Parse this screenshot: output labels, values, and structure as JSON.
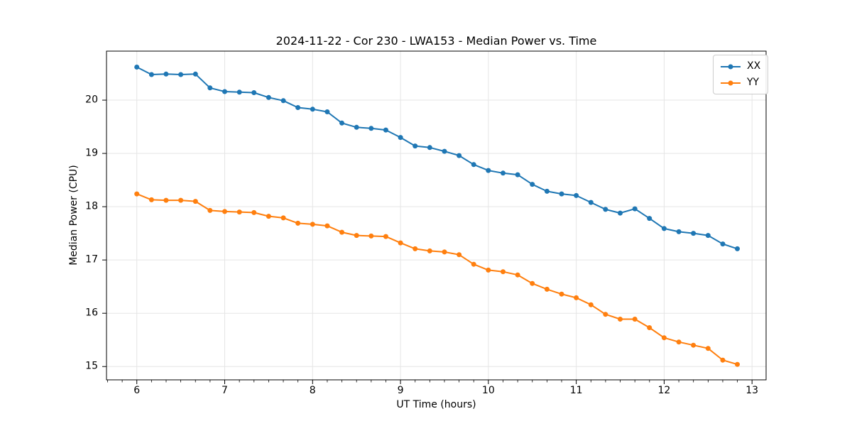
{
  "chart_data": {
    "type": "line",
    "title": "2024-11-22 - Cor 230 - LWA153 - Median Power vs. Time",
    "xlabel": "UT Time (hours)",
    "ylabel": "Median Power (CPU)",
    "xlim": [
      5.655,
      13.16
    ],
    "ylim": [
      14.75,
      20.92
    ],
    "x_ticks": [
      6,
      7,
      8,
      9,
      10,
      11,
      12,
      13
    ],
    "y_ticks": [
      15,
      16,
      17,
      18,
      19,
      20
    ],
    "x_minor_step": 0.16667,
    "grid": true,
    "grid_color": "#e5e5e5",
    "spine_color": "#000000",
    "legend_position": "upper right",
    "marker": "o",
    "x": [
      6.0,
      6.167,
      6.333,
      6.5,
      6.667,
      6.833,
      7.0,
      7.167,
      7.333,
      7.5,
      7.667,
      7.833,
      8.0,
      8.167,
      8.333,
      8.5,
      8.667,
      8.833,
      9.0,
      9.167,
      9.333,
      9.5,
      9.667,
      9.833,
      10.0,
      10.167,
      10.333,
      10.5,
      10.667,
      10.833,
      11.0,
      11.167,
      11.333,
      11.5,
      11.667,
      11.833,
      12.0,
      12.167,
      12.333,
      12.5,
      12.667,
      12.833
    ],
    "series": [
      {
        "name": "XX",
        "color": "#1f77b4",
        "values": [
          20.62,
          20.48,
          20.49,
          20.48,
          20.49,
          20.23,
          20.16,
          20.15,
          20.14,
          20.05,
          19.99,
          19.86,
          19.83,
          19.78,
          19.57,
          19.49,
          19.47,
          19.44,
          19.3,
          19.14,
          19.11,
          19.04,
          18.96,
          18.79,
          18.68,
          18.63,
          18.6,
          18.42,
          18.29,
          18.24,
          18.21,
          18.08,
          17.95,
          17.88,
          17.96,
          17.78,
          17.59,
          17.53,
          17.5,
          17.46,
          17.3,
          17.21
        ]
      },
      {
        "name": "YY",
        "color": "#ff7f0e",
        "values": [
          18.24,
          18.13,
          18.12,
          18.12,
          18.1,
          17.93,
          17.91,
          17.9,
          17.89,
          17.82,
          17.79,
          17.69,
          17.67,
          17.64,
          17.52,
          17.46,
          17.45,
          17.44,
          17.32,
          17.21,
          17.17,
          17.15,
          17.1,
          16.92,
          16.81,
          16.78,
          16.72,
          16.56,
          16.45,
          16.36,
          16.29,
          16.16,
          15.98,
          15.89,
          15.89,
          15.73,
          15.54,
          15.46,
          15.4,
          15.34,
          15.12,
          15.04
        ]
      }
    ]
  }
}
